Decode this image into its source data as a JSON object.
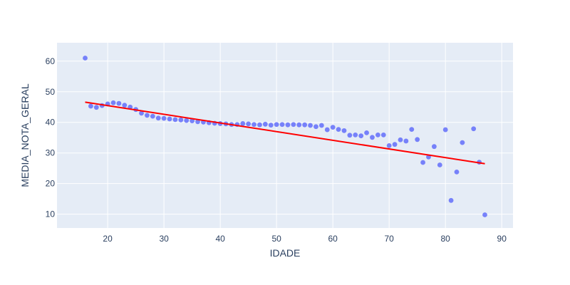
{
  "chart_data": {
    "type": "scatter",
    "title": "",
    "xlabel": "IDADE",
    "ylabel": "MEDIA_NOTA_GERAL",
    "xlim": [
      11,
      92
    ],
    "ylim": [
      5.5,
      66
    ],
    "xticks": [
      20,
      30,
      40,
      50,
      60,
      70,
      80,
      90
    ],
    "yticks": [
      10,
      20,
      30,
      40,
      50,
      60
    ],
    "grid": true,
    "colors": {
      "plot_bg": "#e5ecf6",
      "grid": "#ffffff",
      "points": "#636efa",
      "trend": "#ff0000",
      "text": "#2a3f5f"
    },
    "series": [
      {
        "type": "scatter",
        "x": [
          16,
          17,
          18,
          19,
          20,
          21,
          22,
          23,
          24,
          25,
          26,
          27,
          28,
          29,
          30,
          31,
          32,
          33,
          34,
          35,
          36,
          37,
          38,
          39,
          40,
          41,
          42,
          43,
          44,
          45,
          46,
          47,
          48,
          49,
          50,
          51,
          52,
          53,
          54,
          55,
          56,
          57,
          58,
          59,
          60,
          61,
          62,
          63,
          64,
          65,
          66,
          67,
          68,
          69,
          70,
          71,
          72,
          73,
          74,
          75,
          76,
          77,
          78,
          79,
          80,
          81,
          82,
          83,
          85,
          86,
          87
        ],
        "y": [
          61.0,
          45.3,
          44.9,
          45.5,
          46.0,
          46.4,
          46.2,
          45.6,
          45.0,
          44.2,
          43.0,
          42.3,
          42.0,
          41.4,
          41.3,
          41.1,
          40.9,
          40.8,
          40.6,
          40.5,
          40.2,
          40.1,
          39.9,
          39.7,
          39.6,
          39.5,
          39.3,
          39.3,
          39.6,
          39.5,
          39.3,
          39.2,
          39.4,
          39.1,
          39.3,
          39.3,
          39.2,
          39.3,
          39.2,
          39.2,
          39.0,
          38.6,
          39.0,
          37.6,
          38.4,
          37.7,
          37.3,
          35.8,
          35.9,
          35.6,
          36.6,
          35.1,
          35.9,
          35.9,
          32.4,
          32.8,
          34.3,
          33.9,
          37.7,
          34.4,
          26.9,
          28.7,
          32.1,
          26.1,
          37.6,
          14.5,
          23.8,
          33.4,
          37.9,
          27.0,
          9.8
        ]
      },
      {
        "type": "line",
        "x": [
          16,
          87
        ],
        "y": [
          46.6,
          26.5
        ]
      }
    ]
  }
}
